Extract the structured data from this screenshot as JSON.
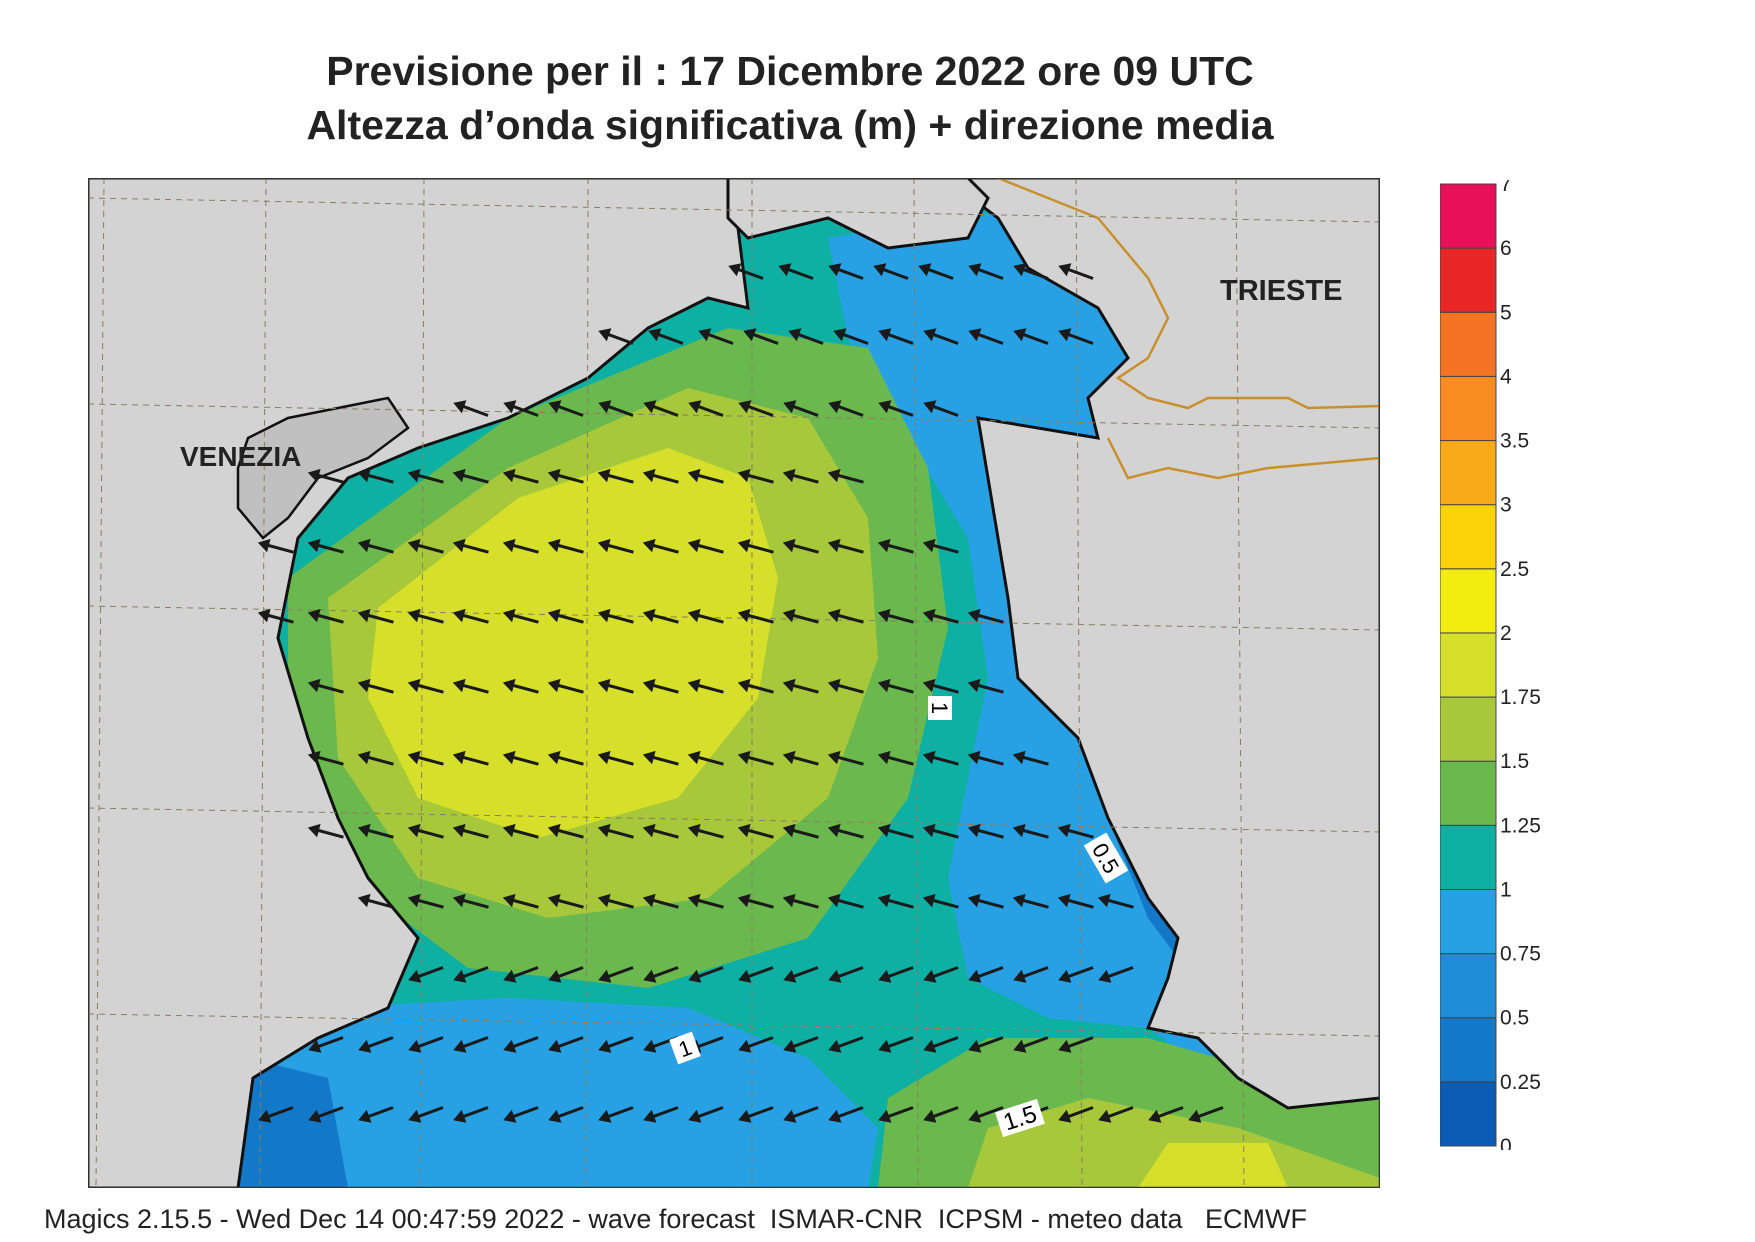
{
  "title": {
    "line1": "Previsione per il  :  17 Dicembre  2022   ore 09 UTC",
    "line2": "Altezza d’onda significativa (m) + direzione media"
  },
  "map": {
    "cities": [
      {
        "name": "VENEZIA"
      },
      {
        "name": "TRIESTE"
      }
    ],
    "contour_labels": [
      "1",
      "1",
      "0.5",
      "1.5"
    ],
    "land_color": "#d3d3d3",
    "coast_color": "#111111",
    "border_color": "#c8902c",
    "arrow_color": "#1a1a1a",
    "arrow_direction": "towards west / west-south-west"
  },
  "colorbar": {
    "levels": [
      "0",
      "0.25",
      "0.5",
      "0.75",
      "1",
      "1.25",
      "1.5",
      "1.75",
      "2",
      "2.5",
      "3",
      "3.5",
      "4",
      "5",
      "6",
      "7"
    ],
    "colors": [
      "#0a5cb4",
      "#1478c8",
      "#1e8cd6",
      "#28a0e4",
      "#0fb0a4",
      "#6ab84e",
      "#a6c83a",
      "#d6e02a",
      "#f2ec10",
      "#fad208",
      "#f8aa18",
      "#f88c20",
      "#f47424",
      "#e82626",
      "#e81058"
    ]
  },
  "footer": "Magics 2.15.5 - Wed Dec 14 00:47:59 2022 - wave forecast  ISMAR-CNR  ICPSM - meteo data   ECMWF"
}
